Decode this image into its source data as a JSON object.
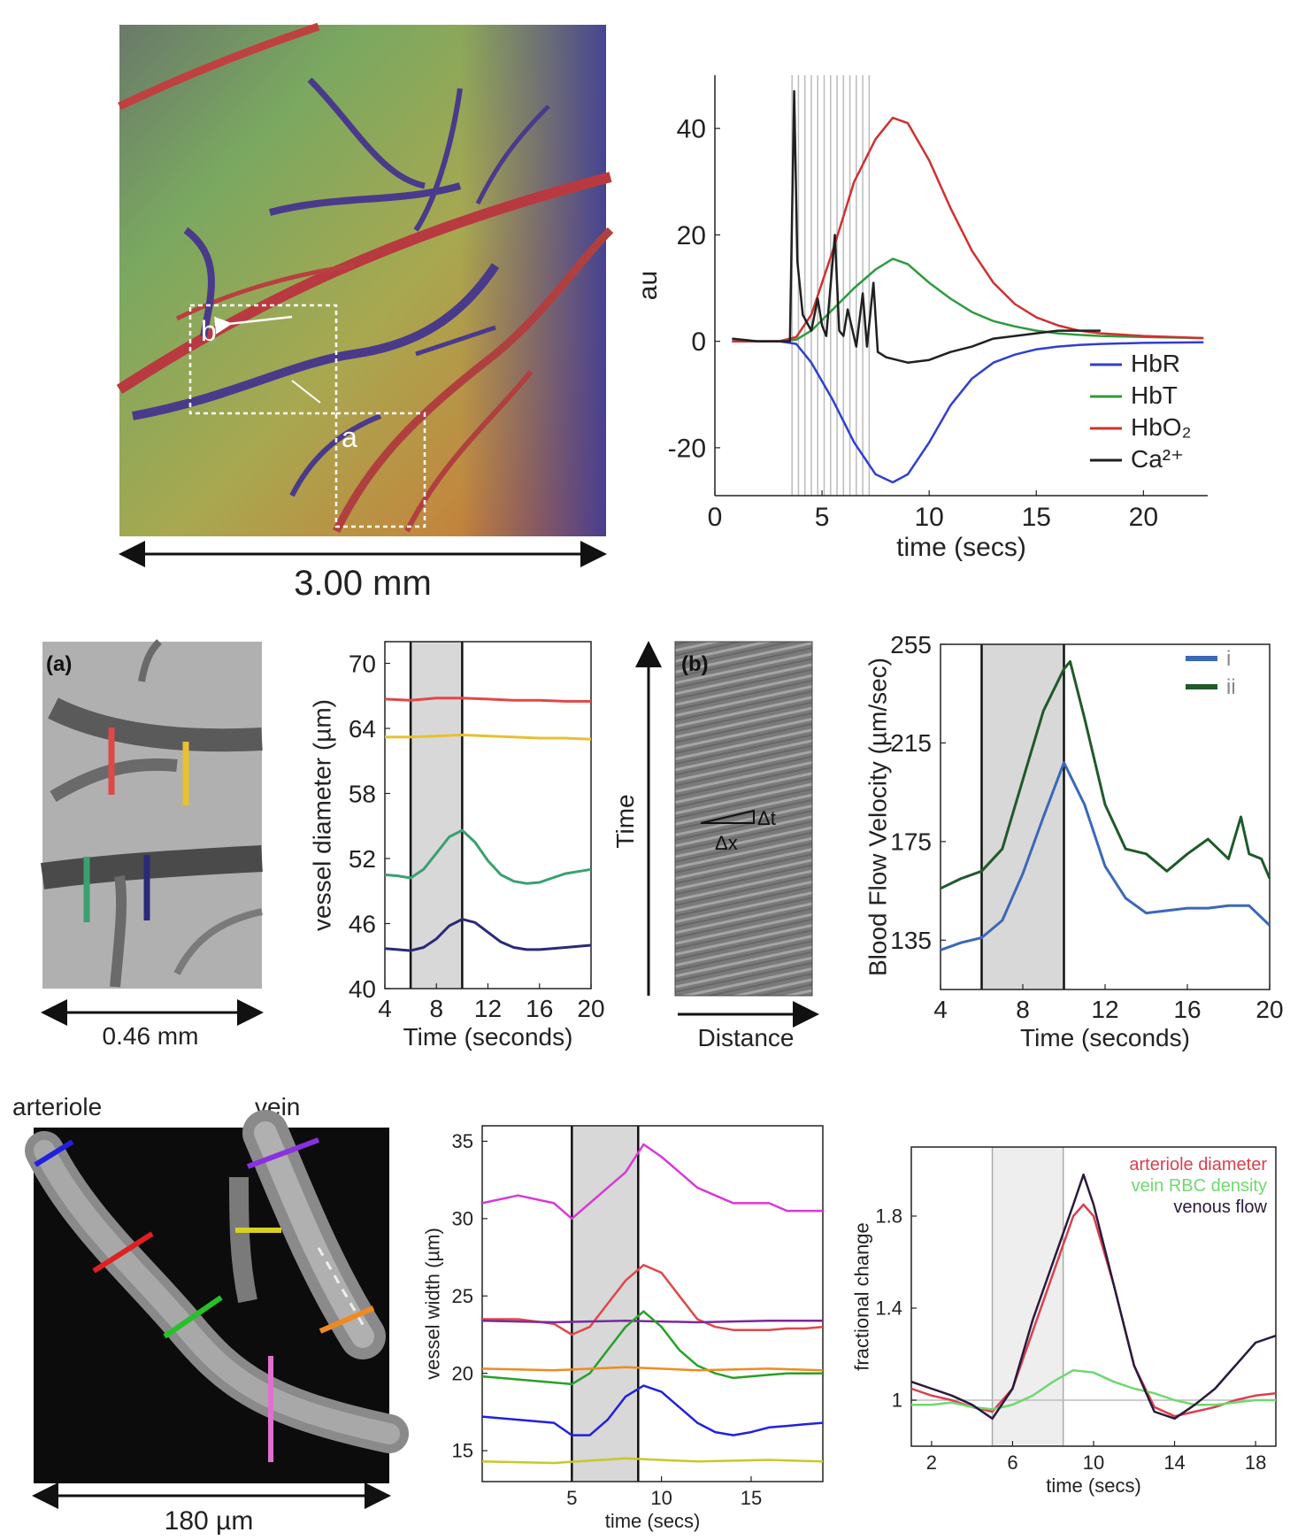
{
  "colors": {
    "hbr": "#2f3fd0",
    "hbt": "#2f9a3f",
    "hbo2": "#d03030",
    "ca": "#202020",
    "red": "#e04848",
    "yellow": "#e8c030",
    "teal": "#3aa070",
    "navy": "#2a2a78",
    "blue_i": "#3b68b8",
    "green_ii": "#1f5a2a",
    "magenta": "#d838d8",
    "purple": "#7a2a9a",
    "orange": "#f08a20",
    "green": "#28a028",
    "lime": "#c8c828",
    "blue": "#2020e0",
    "pink": "#e070d0",
    "violet": "#8a30e0"
  },
  "panel_top_image": {
    "scale_label": "3.00 mm",
    "label_a": "a",
    "label_b": "b"
  },
  "panel_mid_image": {
    "tag": "(a)",
    "scale_label": "0.46 mm"
  },
  "panel_kymo": {
    "tag": "(b)",
    "y_label": "Time",
    "x_label": "Distance",
    "dt_label": "Δt",
    "dx_label": "Δx"
  },
  "panel_bot_image": {
    "label_arteriole": "arteriole",
    "label_vein": "vein",
    "scale_label": "180 µm"
  },
  "chart_data": [
    {
      "type": "line",
      "title": "",
      "xlabel": "time (secs)",
      "ylabel": "au",
      "xlim": [
        0,
        23
      ],
      "ylim": [
        -29,
        50
      ],
      "xticks": [
        0,
        5,
        10,
        15,
        20
      ],
      "yticks": [
        -20,
        0,
        20,
        40
      ],
      "legend_position": "bottom-right",
      "stim_lines": [
        3.6,
        3.9,
        4.2,
        4.5,
        4.8,
        5.1,
        5.4,
        5.7,
        6.0,
        6.3,
        6.6,
        6.9,
        7.2
      ],
      "series": [
        {
          "name": "HbR",
          "x": [
            0.8,
            3,
            3.8,
            4.5,
            5.5,
            6.5,
            7.5,
            8.3,
            9,
            10,
            11,
            12,
            13,
            14,
            15,
            16,
            17,
            18,
            20,
            22.8
          ],
          "y": [
            0,
            0,
            -0.5,
            -4,
            -11,
            -19,
            -25,
            -26.5,
            -25,
            -19,
            -12,
            -7,
            -4,
            -2.5,
            -1.5,
            -1,
            -0.7,
            -0.5,
            -0.3,
            -0.2
          ]
        },
        {
          "name": "HbT",
          "x": [
            0.8,
            3,
            3.8,
            4.5,
            5.5,
            6.5,
            7.5,
            8.3,
            9,
            10,
            11,
            12,
            13,
            14,
            15,
            16,
            17,
            18,
            20,
            22.8
          ],
          "y": [
            0,
            0,
            0.3,
            2,
            6,
            10,
            13.5,
            15.5,
            14.5,
            11,
            8,
            5.5,
            3.8,
            2.8,
            2,
            1.5,
            1.2,
            1,
            0.8,
            0.6
          ]
        },
        {
          "name": "HbO₂",
          "x": [
            0.8,
            3,
            3.8,
            4.5,
            5.5,
            6.5,
            7.5,
            8.3,
            9,
            10,
            11,
            12,
            13,
            14,
            15,
            16,
            17,
            18,
            20,
            22.8
          ],
          "y": [
            0,
            0,
            0.8,
            5,
            17,
            30,
            38,
            42,
            41,
            34,
            25,
            17,
            11,
            7,
            4.5,
            3,
            2,
            1.5,
            1,
            0.6
          ]
        },
        {
          "name": "Ca²⁺",
          "x": [
            0.8,
            2,
            3.5,
            3.7,
            3.85,
            4.1,
            4.5,
            4.8,
            5.0,
            5.2,
            5.6,
            5.8,
            6.0,
            6.2,
            6.6,
            6.9,
            7.1,
            7.4,
            7.6,
            8,
            9,
            10,
            11,
            12,
            13,
            14,
            15,
            16,
            17,
            18
          ],
          "y": [
            0.5,
            0,
            0,
            47,
            15,
            5,
            2,
            8,
            3,
            1,
            20,
            2,
            1,
            6,
            -1,
            9,
            -1,
            11,
            -2,
            -3,
            -4,
            -3.5,
            -2,
            -1,
            0.5,
            1,
            1.5,
            2,
            2,
            2
          ]
        }
      ]
    },
    {
      "type": "line",
      "title": "",
      "xlabel": "Time (seconds)",
      "ylabel": "vessel diameter (µm)",
      "xlim": [
        4,
        20
      ],
      "ylim": [
        40,
        72
      ],
      "xticks": [
        4,
        8,
        12,
        16,
        20
      ],
      "yticks": [
        40,
        46,
        52,
        58,
        64,
        70
      ],
      "shaded_interval": [
        6,
        10
      ],
      "series": [
        {
          "color": "red",
          "x": [
            4,
            6,
            8,
            10,
            12,
            14,
            16,
            18,
            20
          ],
          "y": [
            66.7,
            66.6,
            66.8,
            66.8,
            66.7,
            66.6,
            66.6,
            66.5,
            66.5
          ]
        },
        {
          "color": "yellow",
          "x": [
            4,
            6,
            8,
            10,
            12,
            14,
            16,
            18,
            20
          ],
          "y": [
            63.2,
            63.2,
            63.3,
            63.4,
            63.3,
            63.2,
            63.1,
            63.1,
            63.0
          ]
        },
        {
          "color": "teal",
          "x": [
            4,
            5,
            6,
            7,
            8,
            9,
            10,
            11,
            12,
            13,
            14,
            15,
            16,
            17,
            18,
            19,
            20
          ],
          "y": [
            50.5,
            50.4,
            50.2,
            51.0,
            52.5,
            54.0,
            54.6,
            53.5,
            51.8,
            50.5,
            49.9,
            49.7,
            49.8,
            50.2,
            50.6,
            50.8,
            51.0
          ]
        },
        {
          "color": "navy",
          "x": [
            4,
            5,
            6,
            7,
            8,
            9,
            10,
            11,
            12,
            13,
            14,
            15,
            16,
            17,
            18,
            19,
            20
          ],
          "y": [
            43.7,
            43.6,
            43.5,
            43.8,
            44.6,
            45.8,
            46.4,
            46.1,
            45.2,
            44.3,
            43.8,
            43.6,
            43.6,
            43.7,
            43.8,
            43.9,
            44.0
          ]
        }
      ]
    },
    {
      "type": "line",
      "title": "",
      "xlabel": "Time (seconds)",
      "ylabel": "Blood Flow Velocity (µm/sec)",
      "xlim": [
        4,
        20
      ],
      "ylim": [
        115,
        255
      ],
      "xticks": [
        4,
        8,
        12,
        16,
        20
      ],
      "yticks": [
        135,
        175,
        215,
        255
      ],
      "shaded_interval": [
        6,
        10
      ],
      "legend_position": "top-right",
      "series": [
        {
          "name": "i",
          "x": [
            4,
            5,
            6,
            7,
            8,
            9,
            10,
            11,
            12,
            13,
            14,
            15,
            16,
            17,
            18,
            19,
            20
          ],
          "y": [
            131,
            134,
            136,
            143,
            162,
            185,
            207,
            190,
            165,
            152,
            146,
            147,
            148,
            148,
            149,
            149,
            141
          ]
        },
        {
          "name": "ii",
          "x": [
            4,
            5,
            6,
            7,
            8,
            9,
            10,
            10.3,
            11,
            12,
            13,
            14,
            15,
            16,
            17,
            18,
            18.6,
            19,
            19.6,
            20
          ],
          "y": [
            156,
            160,
            163,
            172,
            200,
            228,
            245,
            248,
            225,
            190,
            172,
            170,
            163,
            170,
            176,
            168,
            185,
            170,
            168,
            160
          ]
        }
      ]
    },
    {
      "type": "line",
      "title": "",
      "xlabel": "time (secs)",
      "ylabel": "vessel width (µm)",
      "xlim": [
        0,
        19
      ],
      "ylim": [
        13,
        36
      ],
      "xticks": [
        5,
        10,
        15
      ],
      "yticks": [
        15,
        20,
        25,
        30,
        35
      ],
      "shaded_interval": [
        5,
        8.7
      ],
      "series": [
        {
          "color": "magenta",
          "x": [
            0,
            2,
            4,
            5,
            6,
            7,
            8,
            9,
            10,
            11,
            12,
            13,
            14,
            15,
            16,
            17,
            18,
            19
          ],
          "y": [
            31,
            31.5,
            31,
            30,
            31,
            32,
            33,
            34.8,
            34,
            33,
            32,
            31.5,
            31,
            31,
            31,
            30.5,
            30.5,
            30.5
          ]
        },
        {
          "color": "red",
          "x": [
            0,
            2,
            4,
            5,
            6,
            7,
            8,
            9,
            10,
            11,
            12,
            13,
            14,
            15,
            16,
            17,
            18,
            19
          ],
          "y": [
            23.5,
            23.5,
            23.2,
            22.5,
            23,
            24.5,
            26,
            27,
            26.5,
            25,
            23.5,
            23,
            22.8,
            22.8,
            22.8,
            22.9,
            22.9,
            23
          ]
        },
        {
          "color": "purple",
          "x": [
            0,
            4,
            8,
            12,
            16,
            19
          ],
          "y": [
            23.4,
            23.3,
            23.4,
            23.3,
            23.4,
            23.4
          ]
        },
        {
          "color": "green",
          "x": [
            0,
            2,
            4,
            5,
            6,
            7,
            8,
            9,
            10,
            11,
            12,
            13,
            14,
            15,
            16,
            17,
            18,
            19
          ],
          "y": [
            19.8,
            19.6,
            19.4,
            19.3,
            20,
            21.5,
            23,
            24,
            23,
            21.5,
            20.5,
            20,
            19.7,
            19.8,
            19.9,
            20,
            20,
            20
          ]
        },
        {
          "color": "orange",
          "x": [
            0,
            4,
            8,
            12,
            16,
            19
          ],
          "y": [
            20.3,
            20.2,
            20.4,
            20.2,
            20.3,
            20.2
          ]
        },
        {
          "color": "blue",
          "x": [
            0,
            2,
            4,
            5,
            6,
            7,
            8,
            9,
            10,
            11,
            12,
            13,
            14,
            15,
            16,
            17,
            18,
            19
          ],
          "y": [
            17.2,
            17,
            16.8,
            16,
            16,
            17,
            18.5,
            19.2,
            18.8,
            17.8,
            16.8,
            16.2,
            16,
            16.2,
            16.5,
            16.6,
            16.7,
            16.8
          ]
        },
        {
          "color": "lime",
          "x": [
            0,
            4,
            8,
            12,
            16,
            19
          ],
          "y": [
            14.3,
            14.2,
            14.5,
            14.3,
            14.4,
            14.3
          ]
        }
      ]
    },
    {
      "type": "line",
      "title": "",
      "xlabel": "time (secs)",
      "ylabel": "fractional change",
      "xlim": [
        1,
        19
      ],
      "ylim": [
        0.8,
        2.1
      ],
      "xticks": [
        2,
        6,
        10,
        14,
        18
      ],
      "yticks": [
        1,
        1.4,
        1.8
      ],
      "shaded_interval": [
        5,
        8.5
      ],
      "legend_position": "top-right",
      "series": [
        {
          "name": "arteriole diameter",
          "x": [
            1,
            2,
            3,
            4,
            5,
            6,
            7,
            8,
            9,
            9.5,
            10,
            11,
            12,
            13,
            14,
            15,
            16,
            17,
            18,
            19
          ],
          "y": [
            1.05,
            1.02,
            1.0,
            0.97,
            0.95,
            1.05,
            1.3,
            1.55,
            1.8,
            1.85,
            1.8,
            1.5,
            1.15,
            0.97,
            0.93,
            0.95,
            0.97,
            1.0,
            1.02,
            1.03
          ]
        },
        {
          "name": "vein RBC density",
          "x": [
            1,
            2,
            3,
            4,
            5,
            6,
            7,
            8,
            9,
            10,
            11,
            12,
            13,
            14,
            15,
            16,
            17,
            18,
            19
          ],
          "y": [
            0.98,
            0.98,
            0.99,
            0.97,
            0.96,
            0.98,
            1.02,
            1.08,
            1.13,
            1.12,
            1.08,
            1.05,
            1.03,
            1.0,
            0.98,
            0.98,
            0.99,
            1.0,
            1.0
          ]
        },
        {
          "name": "venous flow",
          "x": [
            1,
            2,
            3,
            4,
            5,
            6,
            7,
            8,
            9,
            9.5,
            10,
            11,
            12,
            13,
            14,
            15,
            16,
            17,
            18,
            19
          ],
          "y": [
            1.08,
            1.05,
            1.02,
            0.98,
            0.92,
            1.05,
            1.35,
            1.6,
            1.85,
            1.98,
            1.85,
            1.5,
            1.15,
            0.95,
            0.92,
            0.98,
            1.05,
            1.15,
            1.25,
            1.28
          ]
        }
      ]
    }
  ]
}
